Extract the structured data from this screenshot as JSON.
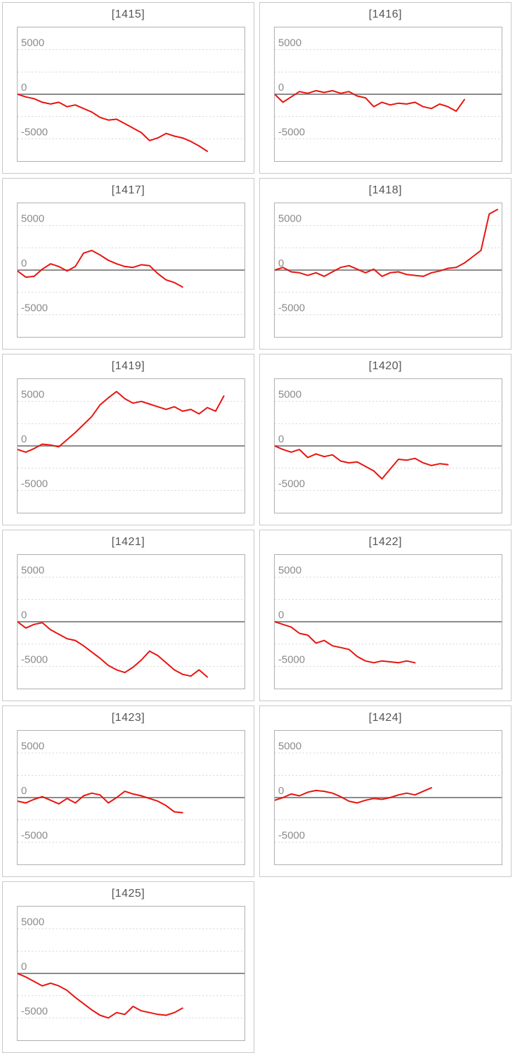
{
  "page": {
    "description": "Grid of daily slump graphs, machines 1415-1425"
  },
  "colors": {
    "line": "#e8140f",
    "zero_line": "#8c8c8c",
    "grid": "#d4d4d4",
    "label": "#8a8a8a",
    "title": "#555555",
    "panel_border": "#c9c9c9",
    "chart_border": "#b0b0b0"
  },
  "axis": {
    "ymin": -7500,
    "ymax": 7500,
    "ticks": [
      {
        "value": 5000,
        "label": "5000"
      },
      {
        "value": 0,
        "label": "0"
      },
      {
        "value": -5000,
        "label": "-5000"
      }
    ],
    "grid_values": [
      5000,
      2500,
      -2500,
      -5000
    ],
    "max_points": 28
  },
  "chart_data": [
    {
      "type": "line",
      "title": "[1415]",
      "ylim": [
        -7500,
        7500
      ],
      "values": [
        0,
        -300,
        -500,
        -900,
        -1100,
        -900,
        -1400,
        -1200,
        -1600,
        -2000,
        -2600,
        -2900,
        -2800,
        -3300,
        -3800,
        -4300,
        -5200,
        -4900,
        -4400,
        -4700,
        -4900,
        -5300,
        -5800,
        -6400
      ]
    },
    {
      "type": "line",
      "title": "[1416]",
      "ylim": [
        -7500,
        7500
      ],
      "values": [
        0,
        -900,
        -300,
        300,
        100,
        400,
        200,
        400,
        100,
        300,
        -200,
        -400,
        -1400,
        -900,
        -1200,
        -1000,
        -1100,
        -900,
        -1400,
        -1600,
        -1100,
        -1400,
        -1900,
        -600
      ]
    },
    {
      "type": "line",
      "title": "[1417]",
      "ylim": [
        -7500,
        7500
      ],
      "values": [
        -100,
        -800,
        -700,
        100,
        700,
        400,
        -100,
        400,
        1900,
        2200,
        1700,
        1100,
        700,
        400,
        300,
        600,
        500,
        -400,
        -1100,
        -1400,
        -1900
      ]
    },
    {
      "type": "line",
      "title": "[1418]",
      "ylim": [
        -7500,
        7500
      ],
      "values": [
        0,
        300,
        -200,
        -300,
        -600,
        -300,
        -700,
        -200,
        300,
        500,
        100,
        -300,
        100,
        -700,
        -300,
        -200,
        -500,
        -600,
        -700,
        -300,
        -100,
        200,
        300,
        800,
        1500,
        2200,
        6300,
        6800
      ]
    },
    {
      "type": "line",
      "title": "[1419]",
      "ylim": [
        -7500,
        7500
      ],
      "values": [
        -400,
        -700,
        -300,
        200,
        100,
        -100,
        700,
        1500,
        2400,
        3300,
        4600,
        5400,
        6100,
        5300,
        4800,
        5000,
        4700,
        4400,
        4100,
        4400,
        3900,
        4100,
        3600,
        4300,
        3900,
        5600
      ]
    },
    {
      "type": "line",
      "title": "[1420]",
      "ylim": [
        -7500,
        7500
      ],
      "values": [
        0,
        -400,
        -700,
        -400,
        -1300,
        -900,
        -1200,
        -1000,
        -1700,
        -1900,
        -1800,
        -2300,
        -2800,
        -3700,
        -2600,
        -1500,
        -1600,
        -1400,
        -1900,
        -2200,
        -2000,
        -2100
      ]
    },
    {
      "type": "line",
      "title": "[1421]",
      "ylim": [
        -7500,
        7500
      ],
      "values": [
        0,
        -700,
        -300,
        -100,
        -900,
        -1400,
        -1900,
        -2100,
        -2700,
        -3400,
        -4100,
        -4900,
        -5400,
        -5700,
        -5100,
        -4300,
        -3300,
        -3800,
        -4600,
        -5400,
        -5900,
        -6100,
        -5400,
        -6200
      ]
    },
    {
      "type": "line",
      "title": "[1422]",
      "ylim": [
        -7500,
        7500
      ],
      "values": [
        0,
        -300,
        -600,
        -1300,
        -1500,
        -2400,
        -2100,
        -2700,
        -2900,
        -3100,
        -3900,
        -4400,
        -4600,
        -4400,
        -4500,
        -4600,
        -4400,
        -4600
      ]
    },
    {
      "type": "line",
      "title": "[1423]",
      "ylim": [
        -7500,
        7500
      ],
      "values": [
        -400,
        -600,
        -200,
        100,
        -300,
        -700,
        -100,
        -600,
        200,
        500,
        300,
        -600,
        0,
        700,
        400,
        200,
        -100,
        -400,
        -900,
        -1600,
        -1700
      ]
    },
    {
      "type": "line",
      "title": "[1424]",
      "ylim": [
        -7500,
        7500
      ],
      "values": [
        -300,
        0,
        400,
        200,
        600,
        800,
        700,
        500,
        100,
        -400,
        -600,
        -300,
        -100,
        -200,
        0,
        300,
        500,
        300,
        700,
        1100
      ]
    },
    {
      "type": "line",
      "title": "[1425]",
      "ylim": [
        -7500,
        7500
      ],
      "values": [
        0,
        -400,
        -900,
        -1400,
        -1100,
        -1400,
        -1900,
        -2700,
        -3400,
        -4100,
        -4700,
        -5000,
        -4400,
        -4600,
        -3700,
        -4200,
        -4400,
        -4600,
        -4700,
        -4400,
        -3900
      ]
    }
  ]
}
